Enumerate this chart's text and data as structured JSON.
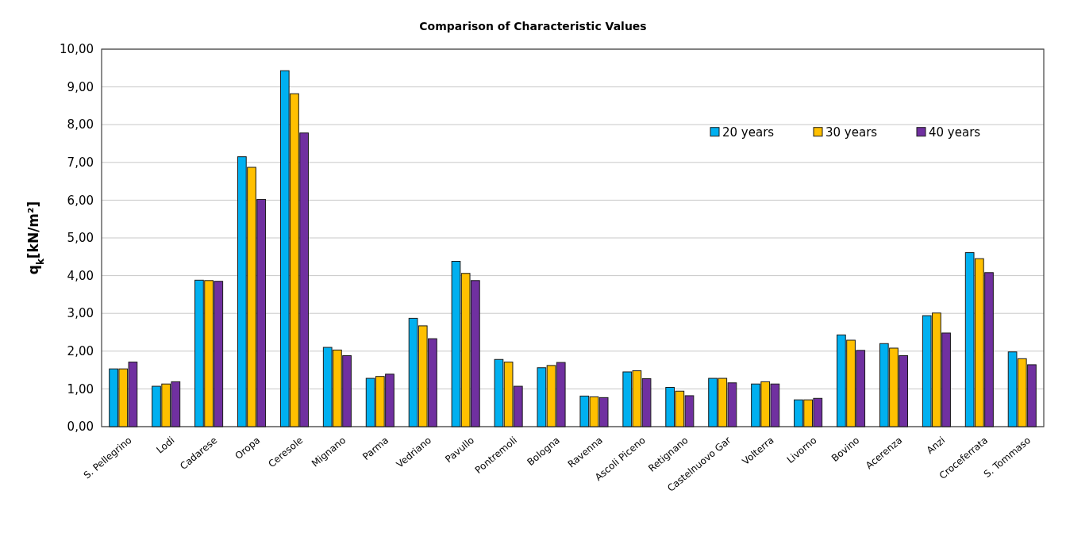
{
  "chart_data": {
    "type": "bar",
    "title": "Comparison of Characteristic Values",
    "ylabel": "q$_{k}$[kN/m²]",
    "categories": [
      "S. Pellegrino",
      "Lodi",
      "Cadarese",
      "Oropa",
      "Ceresole",
      "Mignano",
      "Parma",
      "Vedriano",
      "Pavullo",
      "Pontremoli",
      "Bologna",
      "Ravenna",
      "Ascoli Piceno",
      "Retignano",
      "Castelnuovo Gar",
      "Volterra",
      "Livorno",
      "Bovino",
      "Acerenza",
      "Anzi",
      "Croceferrata",
      "S. Tommaso"
    ],
    "series": [
      {
        "name": "20 years",
        "color": "#00b0f0",
        "values": [
          1.53,
          1.07,
          3.88,
          7.15,
          9.43,
          2.1,
          1.28,
          2.87,
          4.38,
          1.78,
          1.56,
          0.81,
          1.45,
          1.04,
          1.28,
          1.13,
          0.71,
          2.43,
          2.2,
          2.94,
          4.61,
          1.98
        ]
      },
      {
        "name": "30 years",
        "color": "#ffc000",
        "values": [
          1.53,
          1.13,
          3.87,
          6.87,
          8.82,
          2.03,
          1.33,
          2.67,
          4.06,
          1.71,
          1.62,
          0.79,
          1.48,
          0.94,
          1.28,
          1.19,
          0.71,
          2.29,
          2.08,
          3.01,
          4.45,
          1.8
        ]
      },
      {
        "name": "40 years",
        "color": "#7030a0",
        "values": [
          1.71,
          1.19,
          3.85,
          6.02,
          7.78,
          1.88,
          1.39,
          2.33,
          3.87,
          1.07,
          1.7,
          0.77,
          1.27,
          0.82,
          1.16,
          1.13,
          0.75,
          2.02,
          1.88,
          2.48,
          4.08,
          1.64
        ]
      }
    ],
    "ylim": [
      0,
      10
    ],
    "yticks": [
      {
        "value": 0,
        "label": "0,00"
      },
      {
        "value": 1,
        "label": "1,00"
      },
      {
        "value": 2,
        "label": "2,00"
      },
      {
        "value": 3,
        "label": "3,00"
      },
      {
        "value": 4,
        "label": "4,00"
      },
      {
        "value": 5,
        "label": "5,00"
      },
      {
        "value": 6,
        "label": "6,00"
      },
      {
        "value": 7,
        "label": "7,00"
      },
      {
        "value": 8,
        "label": "8,00"
      },
      {
        "value": 9,
        "label": "9,00"
      },
      {
        "value": 10,
        "label": "10,00"
      }
    ],
    "grid": "y",
    "legend": "top right"
  }
}
